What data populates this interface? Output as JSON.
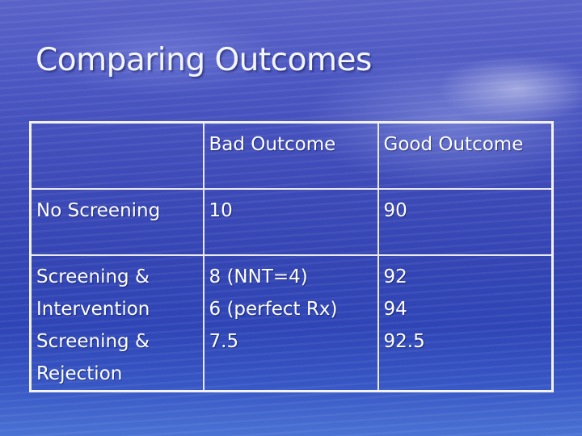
{
  "slide": {
    "title": "Comparing Outcomes"
  },
  "table": {
    "header": {
      "corner": "",
      "bad": "Bad Outcome",
      "good": "Good Outcome"
    },
    "rows": [
      {
        "label_lines": [
          "No Screening"
        ],
        "bad_lines": [
          "10"
        ],
        "good_lines": [
          "90"
        ]
      },
      {
        "label_lines": [
          "Screening &",
          "Intervention",
          "Screening &",
          "Rejection"
        ],
        "bad_lines": [
          "8 (NNT=4)",
          "6 (perfect Rx)",
          "7.5"
        ],
        "good_lines": [
          "92",
          "94",
          "92.5"
        ]
      }
    ]
  }
}
